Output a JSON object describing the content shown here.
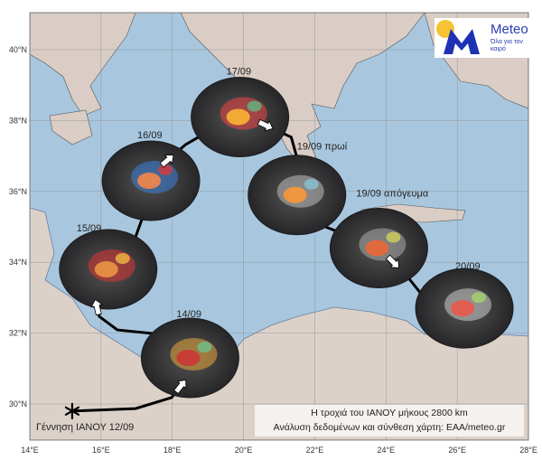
{
  "map": {
    "lon_ticks": [
      "14°E",
      "16°E",
      "18°E",
      "20°E",
      "22°E",
      "24°E",
      "26°E",
      "28°E"
    ],
    "lat_ticks": [
      "30°N",
      "32°N",
      "34°N",
      "36°N",
      "38°N",
      "40°N"
    ],
    "extent": {
      "lon": [
        14,
        28
      ],
      "lat": [
        29.0,
        41.0
      ]
    },
    "colors": {
      "sea": "#a8c7df",
      "land": "#d9cdc6",
      "track": "#000000",
      "satellite_disc": "#2b2b2e"
    },
    "genesis_label": "Γέννηση ΙΑΝΟΥ 12/09",
    "track": [
      [
        15.19,
        29.8
      ],
      [
        16.97,
        29.87
      ],
      [
        17.98,
        30.18
      ],
      [
        18.49,
        30.82
      ],
      [
        18.24,
        31.91
      ],
      [
        16.46,
        32.09
      ],
      [
        15.95,
        32.47
      ],
      [
        15.83,
        32.98
      ],
      [
        16.21,
        33.88
      ],
      [
        16.97,
        34.72
      ],
      [
        17.22,
        35.41
      ],
      [
        17.35,
        36.43
      ],
      [
        18.37,
        37.32
      ],
      [
        19.89,
        38.21
      ],
      [
        21.34,
        37.53
      ],
      [
        21.54,
        36.81
      ],
      [
        21.54,
        35.92
      ],
      [
        21.92,
        35.15
      ],
      [
        22.68,
        34.85
      ],
      [
        23.82,
        34.39
      ],
      [
        24.58,
        33.62
      ],
      [
        25.09,
        32.98
      ],
      [
        26.23,
        32.73
      ],
      [
        26.16,
        31.71
      ]
    ],
    "snapshots": [
      {
        "label": "14/09",
        "lon": 18.5,
        "lat": 31.3
      },
      {
        "label": "15/09",
        "lon": 16.2,
        "lat": 33.8
      },
      {
        "label": "16/09",
        "lon": 17.4,
        "lat": 36.3
      },
      {
        "label": "17/09",
        "lon": 19.9,
        "lat": 38.1
      },
      {
        "label": "19/09 πρωί",
        "lon": 21.5,
        "lat": 35.9
      },
      {
        "label": "19/09 απόγευμα",
        "lon": 23.8,
        "lat": 34.4
      },
      {
        "label": "20/09",
        "lon": 26.2,
        "lat": 32.7
      }
    ]
  },
  "logo": {
    "name": "Meteo",
    "tagline": "Όλα για τον καιρό",
    "colors": {
      "blue": "#1f32b4",
      "sun": "#f5c333"
    }
  },
  "caption": {
    "line1": "Η τροχιά του ΙΑΝΟΥ μήκους 2800 km",
    "line2": "Ανάλυση δεδομένων και σύνθεση χάρτη: ΕΑΑ/meteo.gr"
  }
}
